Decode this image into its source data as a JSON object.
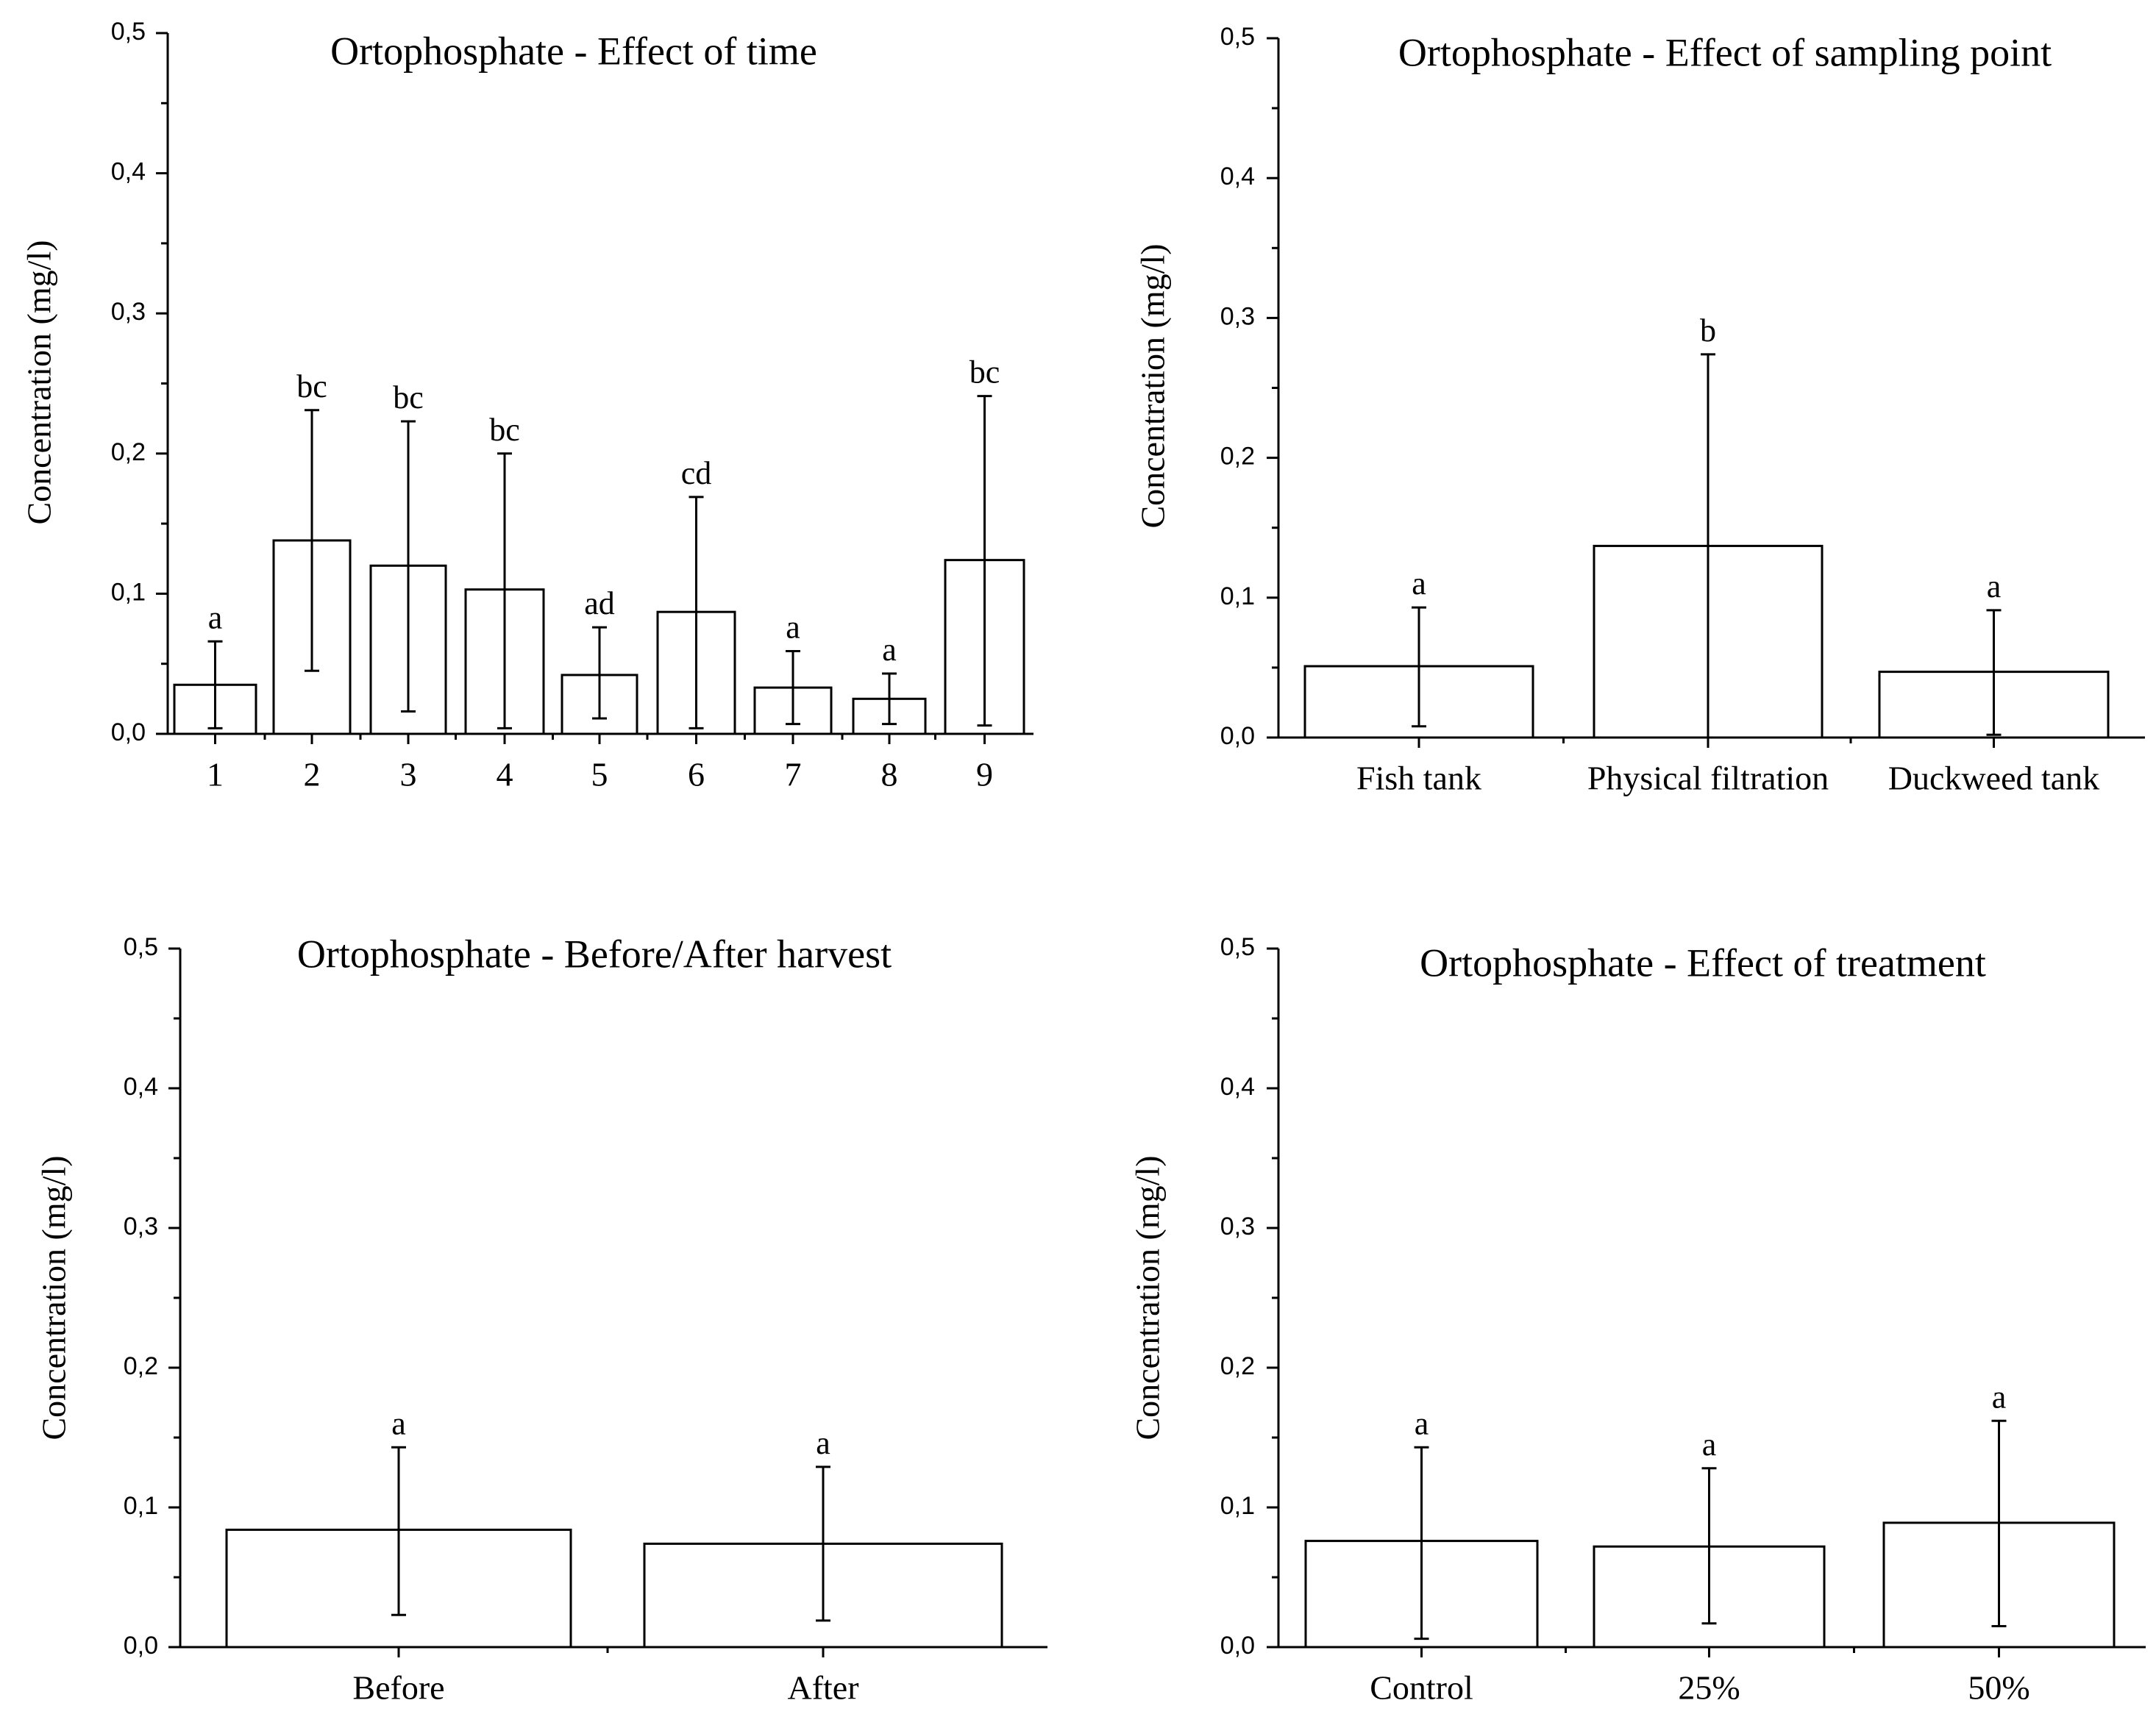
{
  "y_ticks": [
    "0,0",
    "0,1",
    "0,2",
    "0,3",
    "0,4",
    "0,5"
  ],
  "chart_data": [
    {
      "type": "bar",
      "title": "Ortophosphate - Effect of time",
      "ylabel": "Concentration (mg/l)",
      "xlabel": "",
      "ylim": [
        0,
        0.5
      ],
      "categories": [
        "1",
        "2",
        "3",
        "4",
        "5",
        "6",
        "7",
        "8",
        "9"
      ],
      "values": [
        0.035,
        0.138,
        0.12,
        0.103,
        0.042,
        0.087,
        0.033,
        0.025,
        0.124
      ],
      "err_low": [
        0.004,
        0.045,
        0.016,
        0.004,
        0.011,
        0.004,
        0.007,
        0.007,
        0.006
      ],
      "err_high": [
        0.066,
        0.231,
        0.223,
        0.2,
        0.076,
        0.169,
        0.059,
        0.043,
        0.241
      ],
      "labels": [
        "a",
        "bc",
        "bc",
        "bc",
        "ad",
        "cd",
        "a",
        "a",
        "bc"
      ]
    },
    {
      "type": "bar",
      "title": "Ortophosphate - Effect of sampling point",
      "ylabel": "Concentration (mg/l)",
      "xlabel": "",
      "ylim": [
        0,
        0.5
      ],
      "categories": [
        "Fish tank",
        "Physical filtration",
        "Duckweed tank"
      ],
      "values": [
        0.051,
        0.137,
        0.047
      ],
      "err_low": [
        0.008,
        0.0,
        0.002
      ],
      "err_high": [
        0.093,
        0.274,
        0.091
      ],
      "labels": [
        "a",
        "b",
        "a"
      ]
    },
    {
      "type": "bar",
      "title": "Ortophosphate - Before/After harvest",
      "ylabel": "Concentration (mg/l)",
      "xlabel": "",
      "ylim": [
        0,
        0.5
      ],
      "categories": [
        "Before",
        "After"
      ],
      "values": [
        0.084,
        0.074
      ],
      "err_low": [
        0.023,
        0.019
      ],
      "err_high": [
        0.143,
        0.129
      ],
      "labels": [
        "a",
        "a"
      ]
    },
    {
      "type": "bar",
      "title": "Ortophosphate - Effect of treatment",
      "ylabel": "Concentration (mg/l)",
      "xlabel": "",
      "ylim": [
        0,
        0.5
      ],
      "categories": [
        "Control",
        "25%",
        "50%"
      ],
      "values": [
        0.076,
        0.072,
        0.089
      ],
      "err_low": [
        0.006,
        0.017,
        0.015
      ],
      "err_high": [
        0.143,
        0.128,
        0.162
      ],
      "labels": [
        "a",
        "a",
        "a"
      ]
    }
  ]
}
